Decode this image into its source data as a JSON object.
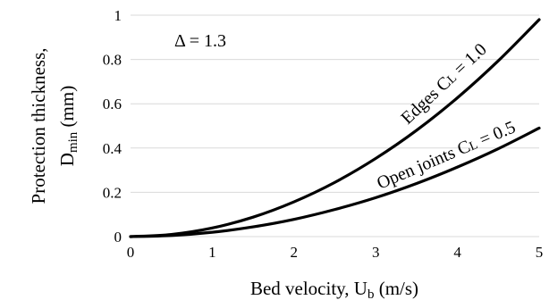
{
  "chart_data": {
    "type": "line",
    "xlim": [
      0,
      5
    ],
    "ylim": [
      0,
      1
    ],
    "x_ticks": [
      0,
      1,
      2,
      3,
      4,
      5
    ],
    "y_ticks": [
      0,
      0.2,
      0.4,
      0.6,
      0.8,
      1
    ],
    "grid": "horizontal",
    "xlabel": {
      "main": "Bed velocity, U",
      "sub": "b",
      "unit": " (m/s)"
    },
    "ylabel": {
      "line1": "Protection thickness,",
      "main": "D",
      "sub": "min",
      "unit": " (mm)"
    },
    "annotation": "Δ = 1.3",
    "series": [
      {
        "label_main": "Edges C",
        "label_sub": "L",
        "label_value": " = 1.0",
        "x": [
          0,
          0.5,
          1,
          1.5,
          2,
          2.5,
          3,
          3.5,
          4,
          4.5,
          5
        ],
        "y": [
          0,
          0.0098,
          0.039,
          0.088,
          0.157,
          0.245,
          0.353,
          0.48,
          0.627,
          0.794,
          0.98
        ]
      },
      {
        "label_main": "Open joints C",
        "label_sub": "L",
        "label_value": " = 0.5",
        "x": [
          0,
          0.5,
          1,
          1.5,
          2,
          2.5,
          3,
          3.5,
          4,
          4.5,
          5
        ],
        "y": [
          0,
          0.0049,
          0.0196,
          0.044,
          0.078,
          0.1225,
          0.176,
          0.24,
          0.314,
          0.397,
          0.49
        ]
      }
    ]
  }
}
